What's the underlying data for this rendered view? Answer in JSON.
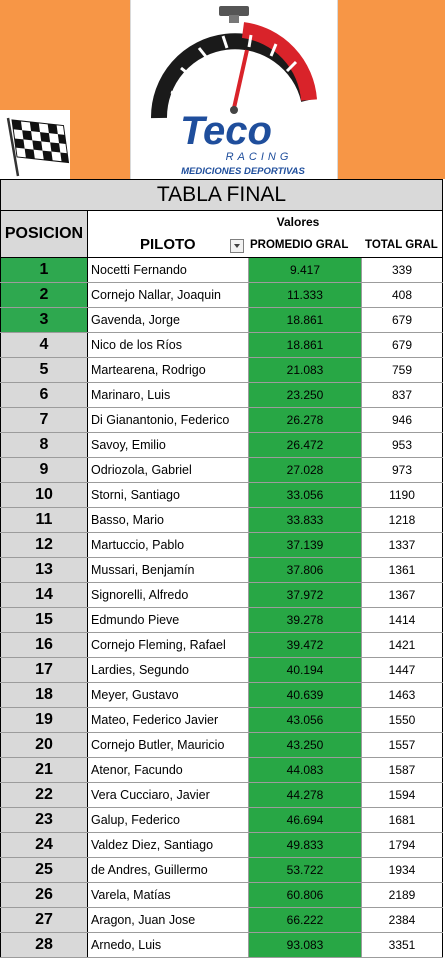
{
  "header": {
    "brand": "Teco",
    "brand_sub": "RACING",
    "brand_tag": "MEDICIONES DEPORTIVAS",
    "title": "TABLA FINAL"
  },
  "columns": {
    "position": "POSICION",
    "valores": "Valores",
    "pilot": "PILOTO",
    "average": "PROMEDIO GRAL",
    "total": "TOTAL GRAL"
  },
  "colors": {
    "banner": "#f79646",
    "highlight_green": "#28a745",
    "header_gray": "#d9d9d9"
  },
  "rows": [
    {
      "pos": "1",
      "name": "Nocetti Fernando",
      "avg": "9.417",
      "total": "339",
      "podium": true
    },
    {
      "pos": "2",
      "name": "Cornejo Nallar, Joaquin",
      "avg": "11.333",
      "total": "408",
      "podium": true
    },
    {
      "pos": "3",
      "name": "Gavenda, Jorge",
      "avg": "18.861",
      "total": "679",
      "podium": true
    },
    {
      "pos": "4",
      "name": "Nico de los Ríos",
      "avg": "18.861",
      "total": "679"
    },
    {
      "pos": "5",
      "name": "Martearena, Rodrigo",
      "avg": "21.083",
      "total": "759"
    },
    {
      "pos": "6",
      "name": "Marinaro, Luis",
      "avg": "23.250",
      "total": "837"
    },
    {
      "pos": "7",
      "name": "Di Gianantonio, Federico",
      "avg": "26.278",
      "total": "946"
    },
    {
      "pos": "8",
      "name": "Savoy, Emilio",
      "avg": "26.472",
      "total": "953"
    },
    {
      "pos": "9",
      "name": "Odriozola, Gabriel",
      "avg": "27.028",
      "total": "973"
    },
    {
      "pos": "10",
      "name": "Storni, Santiago",
      "avg": "33.056",
      "total": "1190"
    },
    {
      "pos": "11",
      "name": "Basso, Mario",
      "avg": "33.833",
      "total": "1218"
    },
    {
      "pos": "12",
      "name": "Martuccio, Pablo",
      "avg": "37.139",
      "total": "1337"
    },
    {
      "pos": "13",
      "name": "Mussari, Benjamín",
      "avg": "37.806",
      "total": "1361"
    },
    {
      "pos": "14",
      "name": "Signorelli, Alfredo",
      "avg": "37.972",
      "total": "1367"
    },
    {
      "pos": "15",
      "name": "Edmundo Pieve",
      "avg": "39.278",
      "total": "1414"
    },
    {
      "pos": "16",
      "name": "Cornejo Fleming, Rafael",
      "avg": "39.472",
      "total": "1421"
    },
    {
      "pos": "17",
      "name": "Lardies, Segundo",
      "avg": "40.194",
      "total": "1447"
    },
    {
      "pos": "18",
      "name": "Meyer, Gustavo",
      "avg": "40.639",
      "total": "1463"
    },
    {
      "pos": "19",
      "name": "Mateo, Federico Javier",
      "avg": "43.056",
      "total": "1550"
    },
    {
      "pos": "20",
      "name": "Cornejo Butler, Mauricio",
      "avg": "43.250",
      "total": "1557"
    },
    {
      "pos": "21",
      "name": "Atenor, Facundo",
      "avg": "44.083",
      "total": "1587"
    },
    {
      "pos": "22",
      "name": "Vera Cucciaro, Javier",
      "avg": "44.278",
      "total": "1594"
    },
    {
      "pos": "23",
      "name": "Galup, Federico",
      "avg": "46.694",
      "total": "1681"
    },
    {
      "pos": "24",
      "name": "Valdez Diez, Santiago",
      "avg": "49.833",
      "total": "1794"
    },
    {
      "pos": "25",
      "name": "de Andres, Guillermo",
      "avg": "53.722",
      "total": "1934"
    },
    {
      "pos": "26",
      "name": "Varela, Matías",
      "avg": "60.806",
      "total": "2189"
    },
    {
      "pos": "27",
      "name": "Aragon, Juan Jose",
      "avg": "66.222",
      "total": "2384"
    },
    {
      "pos": "28",
      "name": "Arnedo, Luis",
      "avg": "93.083",
      "total": "3351"
    }
  ]
}
